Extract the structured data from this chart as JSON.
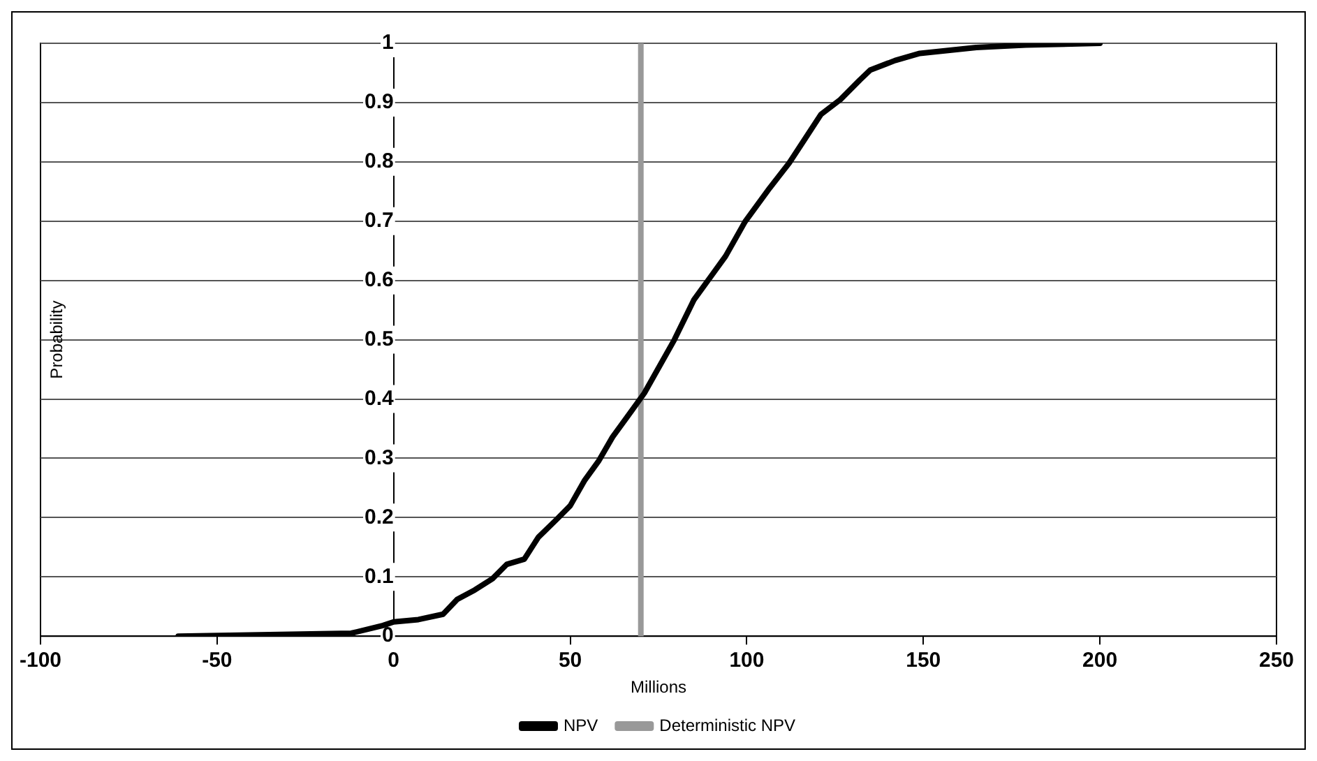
{
  "chart_data": {
    "type": "line",
    "xlabel": "Millions",
    "ylabel": "Probability",
    "xlim": [
      -100,
      250
    ],
    "xticks": [
      -100,
      -50,
      0,
      50,
      100,
      150,
      200,
      250
    ],
    "ylim": [
      0,
      1
    ],
    "yticks": [
      0,
      0.1,
      0.2,
      0.3,
      0.4,
      0.5,
      0.6,
      0.7,
      0.8,
      0.9,
      1
    ],
    "grid": "y",
    "legend": "bottom",
    "marker": "none",
    "line_style": "solid",
    "series": [
      {
        "name": "NPV",
        "color": "#000000",
        "x": [
          -61,
          -12,
          -3,
          0,
          7,
          14,
          18,
          23,
          28,
          32,
          37,
          41,
          46,
          50,
          54,
          58,
          62,
          67,
          71,
          79.5,
          85,
          94,
          99.5,
          106.5,
          112,
          116.5,
          121,
          126.5,
          132,
          135,
          142,
          149,
          165,
          179,
          200
        ],
        "values": [
          0,
          0.005,
          0.018,
          0.024,
          0.028,
          0.037,
          0.062,
          0.078,
          0.097,
          0.121,
          0.13,
          0.167,
          0.196,
          0.22,
          0.262,
          0.295,
          0.336,
          0.377,
          0.41,
          0.5,
          0.567,
          0.641,
          0.699,
          0.756,
          0.798,
          0.839,
          0.88,
          0.905,
          0.938,
          0.955,
          0.971,
          0.983,
          0.993,
          0.997,
          1
        ]
      },
      {
        "name": "Deterministic NPV",
        "color": "#999999",
        "x": [
          70,
          70
        ],
        "values": [
          0,
          1
        ]
      }
    ]
  }
}
